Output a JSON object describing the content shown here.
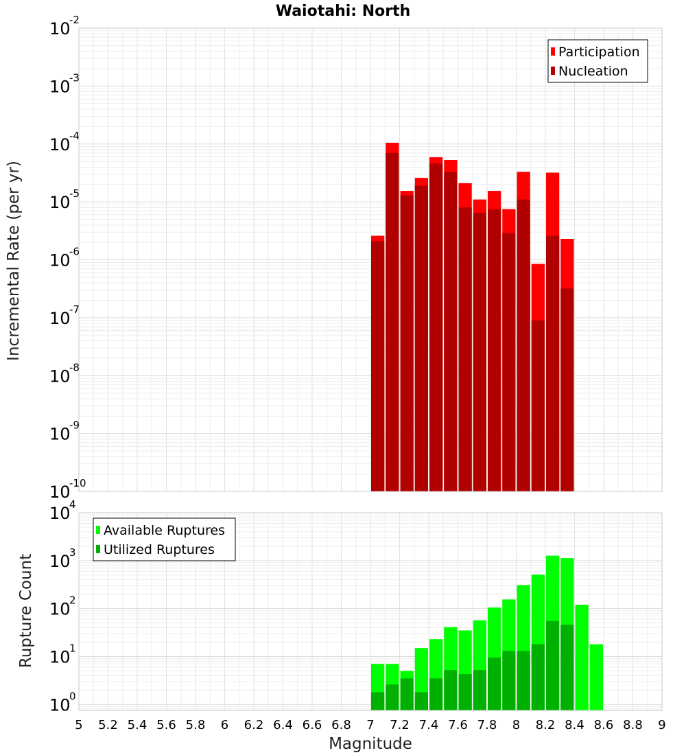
{
  "chart_data": [
    {
      "type": "bar",
      "title": "Waiotahi: North",
      "xlabel": "",
      "ylabel": "Incremental Rate (per yr)",
      "xlim": [
        5,
        9
      ],
      "ylim": [
        1e-10,
        0.01
      ],
      "yscale": "log",
      "grid": true,
      "legend_position": "top-right",
      "bar_width": 0.1,
      "x": [
        7.05,
        7.15,
        7.25,
        7.35,
        7.45,
        7.55,
        7.65,
        7.75,
        7.85,
        7.95,
        8.05,
        8.15,
        8.25,
        8.35
      ],
      "series": [
        {
          "name": "Participation",
          "color": "#ff0000",
          "values": [
            2.6e-06,
            0.000105,
            1.55e-05,
            2.6e-05,
            5.9e-05,
            5.3e-05,
            2.1e-05,
            1.1e-05,
            1.55e-05,
            7.5e-06,
            3.3e-05,
            8.5e-07,
            3.2e-05,
            2.3e-06
          ]
        },
        {
          "name": "Nucleation",
          "color": "#b00000",
          "values": [
            2.1e-06,
            7e-05,
            1.3e-05,
            1.9e-05,
            4.6e-05,
            3.3e-05,
            8e-06,
            6.5e-06,
            7.5e-06,
            2.9e-06,
            1.1e-05,
            9e-08,
            2.6e-06,
            3.2e-07
          ]
        }
      ]
    },
    {
      "type": "bar",
      "title": "",
      "xlabel": "Magnitude",
      "ylabel": "Rupture Count",
      "xlim": [
        5,
        9
      ],
      "ylim": [
        0.75,
        10000
      ],
      "yscale": "log",
      "grid": true,
      "legend_position": "top-left",
      "bar_width": 0.1,
      "x_ticks": [
        "5",
        "5.2",
        "5.4",
        "5.6",
        "5.8",
        "6",
        "6.2",
        "6.4",
        "6.6",
        "6.8",
        "7",
        "7.2",
        "7.4",
        "7.6",
        "7.8",
        "8",
        "8.2",
        "8.4",
        "8.6",
        "8.8",
        "9"
      ],
      "x": [
        7.05,
        7.15,
        7.25,
        7.35,
        7.45,
        7.55,
        7.65,
        7.75,
        7.85,
        7.95,
        8.05,
        8.15,
        8.25,
        8.35,
        8.45,
        8.55
      ],
      "series": [
        {
          "name": "Available Ruptures",
          "color": "#00ff00",
          "values": [
            7,
            7,
            5,
            15,
            23,
            41,
            35,
            57,
            105,
            155,
            310,
            510,
            1270,
            1130,
            120,
            18
          ]
        },
        {
          "name": "Utilized Ruptures",
          "color": "#00b000",
          "values": [
            1.8,
            2.6,
            3.5,
            1.8,
            3.5,
            5.2,
            4.3,
            5.2,
            9.5,
            13,
            13,
            18,
            55,
            46,
            null,
            null
          ]
        }
      ]
    }
  ]
}
